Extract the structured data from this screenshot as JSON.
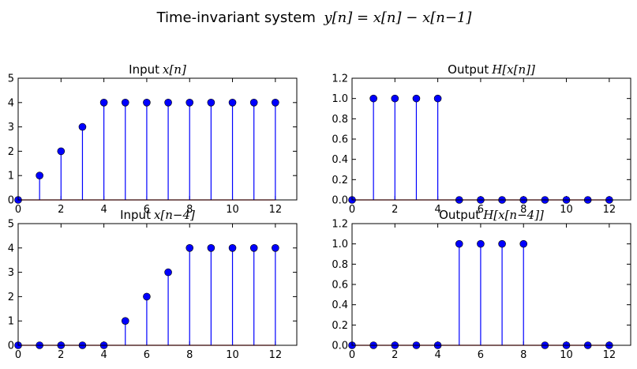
{
  "suptitle": {
    "text": "Time-invariant system",
    "math": "y[n] = x[n] − x[n−1]"
  },
  "chart_data": [
    {
      "type": "stem",
      "title": "Input",
      "title_math": "x[n]",
      "x": [
        0,
        1,
        2,
        3,
        4,
        5,
        6,
        7,
        8,
        9,
        10,
        11,
        12
      ],
      "values": [
        0,
        1,
        2,
        3,
        4,
        4,
        4,
        4,
        4,
        4,
        4,
        4,
        4
      ],
      "xlim": [
        0,
        13
      ],
      "ylim": [
        0,
        5
      ],
      "xticks": [
        "0",
        "2",
        "4",
        "6",
        "8",
        "10",
        "12"
      ],
      "yticks": [
        "0",
        "1",
        "2",
        "3",
        "4",
        "5"
      ],
      "color": "#0000ff"
    },
    {
      "type": "stem",
      "title": "Output",
      "title_math": "H[x[n]]",
      "x": [
        0,
        1,
        2,
        3,
        4,
        5,
        6,
        7,
        8,
        9,
        10,
        11,
        12
      ],
      "values": [
        0,
        1,
        1,
        1,
        1,
        0,
        0,
        0,
        0,
        0,
        0,
        0,
        0
      ],
      "xlim": [
        0,
        13
      ],
      "ylim": [
        0,
        1.2
      ],
      "xticks": [
        "0",
        "2",
        "4",
        "6",
        "8",
        "10",
        "12"
      ],
      "yticks": [
        "0.0",
        "0.2",
        "0.4",
        "0.6",
        "0.8",
        "1.0",
        "1.2"
      ],
      "color": "#0000ff"
    },
    {
      "type": "stem",
      "title": "Input",
      "title_math": "x[n−4]",
      "x": [
        0,
        1,
        2,
        3,
        4,
        5,
        6,
        7,
        8,
        9,
        10,
        11,
        12
      ],
      "values": [
        0,
        0,
        0,
        0,
        0,
        1,
        2,
        3,
        4,
        4,
        4,
        4,
        4
      ],
      "xlim": [
        0,
        13
      ],
      "ylim": [
        0,
        5
      ],
      "xticks": [
        "0",
        "2",
        "4",
        "6",
        "8",
        "10",
        "12"
      ],
      "yticks": [
        "0",
        "1",
        "2",
        "3",
        "4",
        "5"
      ],
      "color": "#0000ff"
    },
    {
      "type": "stem",
      "title": "Output",
      "title_math": "H[x[n−4]]",
      "x": [
        0,
        1,
        2,
        3,
        4,
        5,
        6,
        7,
        8,
        9,
        10,
        11,
        12
      ],
      "values": [
        0,
        0,
        0,
        0,
        0,
        1,
        1,
        1,
        1,
        0,
        0,
        0,
        0
      ],
      "xlim": [
        0,
        13
      ],
      "ylim": [
        0,
        1.2
      ],
      "xticks": [
        "0",
        "2",
        "4",
        "6",
        "8",
        "10",
        "12"
      ],
      "yticks": [
        "0.0",
        "0.2",
        "0.4",
        "0.6",
        "0.8",
        "1.0",
        "1.2"
      ],
      "color": "#0000ff"
    }
  ]
}
